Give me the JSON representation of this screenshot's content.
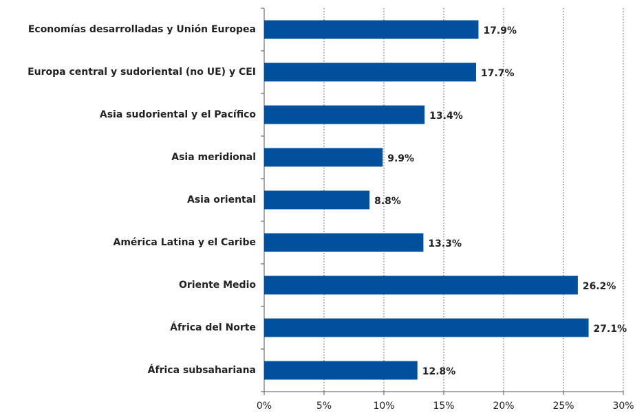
{
  "chart_data": {
    "type": "barh",
    "categories": [
      "Economías desarrolladas y Unión Europea",
      "Europa central y sudoriental (no UE) y CEI",
      "Asia sudoriental y el Pacífico",
      "Asia meridional",
      "Asia oriental",
      "América Latina y el Caribe",
      "Oriente Medio",
      "África del Norte",
      "África subsahariana"
    ],
    "values": [
      17.9,
      17.7,
      13.4,
      9.9,
      8.8,
      13.3,
      26.2,
      27.1,
      12.8
    ],
    "value_labels": [
      "17.9%",
      "17.7%",
      "13.4%",
      "9.9%",
      "8.8%",
      "13.3%",
      "26.2%",
      "27.1%",
      "12.8%"
    ],
    "color": "#00509e",
    "xlim": [
      0,
      30
    ],
    "xticks": [
      {
        "value": 0,
        "label": "0%"
      },
      {
        "value": 5,
        "label": "5%"
      },
      {
        "value": 10,
        "label": "10%"
      },
      {
        "value": 15,
        "label": "15%"
      },
      {
        "value": 20,
        "label": "20%"
      },
      {
        "value": 25,
        "label": "25%"
      },
      {
        "value": 30,
        "label": "30%"
      }
    ],
    "grid": true
  }
}
